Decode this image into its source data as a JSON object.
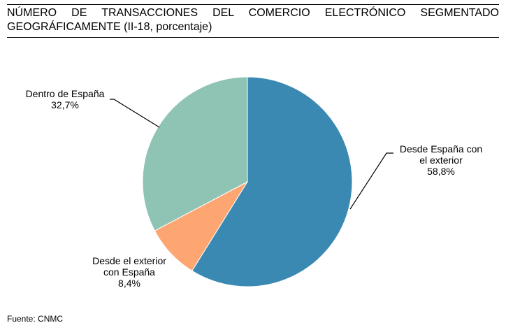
{
  "header": {
    "title_line1": "NÚMERO DE TRANSACCIONES DEL COMERCIO ELECTRÓNICO SEGMENTADO",
    "title_line2": "GEOGRÁFICAMENTE (II-18, porcentaje)"
  },
  "chart_data": {
    "type": "pie",
    "title": "NÚMERO DE TRANSACCIONES DEL COMERCIO ELECTRÓNICO SEGMENTADO GEOGRÁFICAMENTE (II-18, porcentaje)",
    "unit": "%",
    "slices": [
      {
        "label_lines": [
          "Desde España con",
          "el exterior"
        ],
        "value_text": "58,8%",
        "value": 58.8,
        "color": "#3a89b2"
      },
      {
        "label_lines": [
          "Desde el exterior",
          "con España"
        ],
        "value_text": "8,4%",
        "value": 8.4,
        "color": "#fda672"
      },
      {
        "label_lines": [
          "Dentro de España"
        ],
        "value_text": "32,7%",
        "value": 32.7,
        "color": "#8fc3b4"
      }
    ],
    "start": "12 o'clock",
    "direction": "clockwise"
  },
  "footer": {
    "source": "Fuente: CNMC"
  }
}
